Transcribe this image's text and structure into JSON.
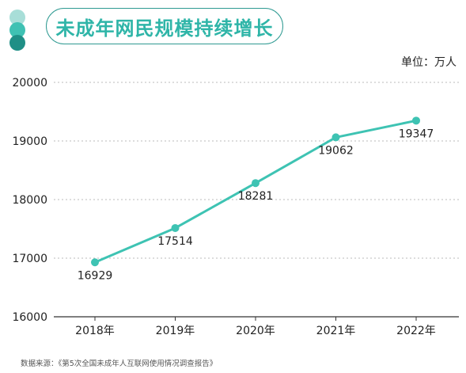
{
  "title": "未成年网民规模持续增长",
  "unit_label": "单位：万人",
  "source_label": "数据来源：《第5次全国未成年人互联网使用情况调查报告》",
  "colors": {
    "line": "#3ec3b3",
    "title": "#2fb5a8",
    "grid": "#bbbbbb"
  },
  "chart_data": {
    "type": "line",
    "title": "未成年网民规模持续增长",
    "xlabel": "",
    "ylabel": "",
    "categories": [
      "2018年",
      "2019年",
      "2020年",
      "2021年",
      "2022年"
    ],
    "series": [
      {
        "values": [
          16929,
          17514,
          18281,
          19062,
          19347
        ]
      }
    ],
    "y_ticks": [
      "16000",
      "17000",
      "18000",
      "19000",
      "20000"
    ],
    "data_labels": [
      "16929",
      "17514",
      "18281",
      "19062",
      "19347"
    ],
    "ylim": [
      16000,
      20000
    ],
    "grid": true,
    "legend": "none"
  }
}
